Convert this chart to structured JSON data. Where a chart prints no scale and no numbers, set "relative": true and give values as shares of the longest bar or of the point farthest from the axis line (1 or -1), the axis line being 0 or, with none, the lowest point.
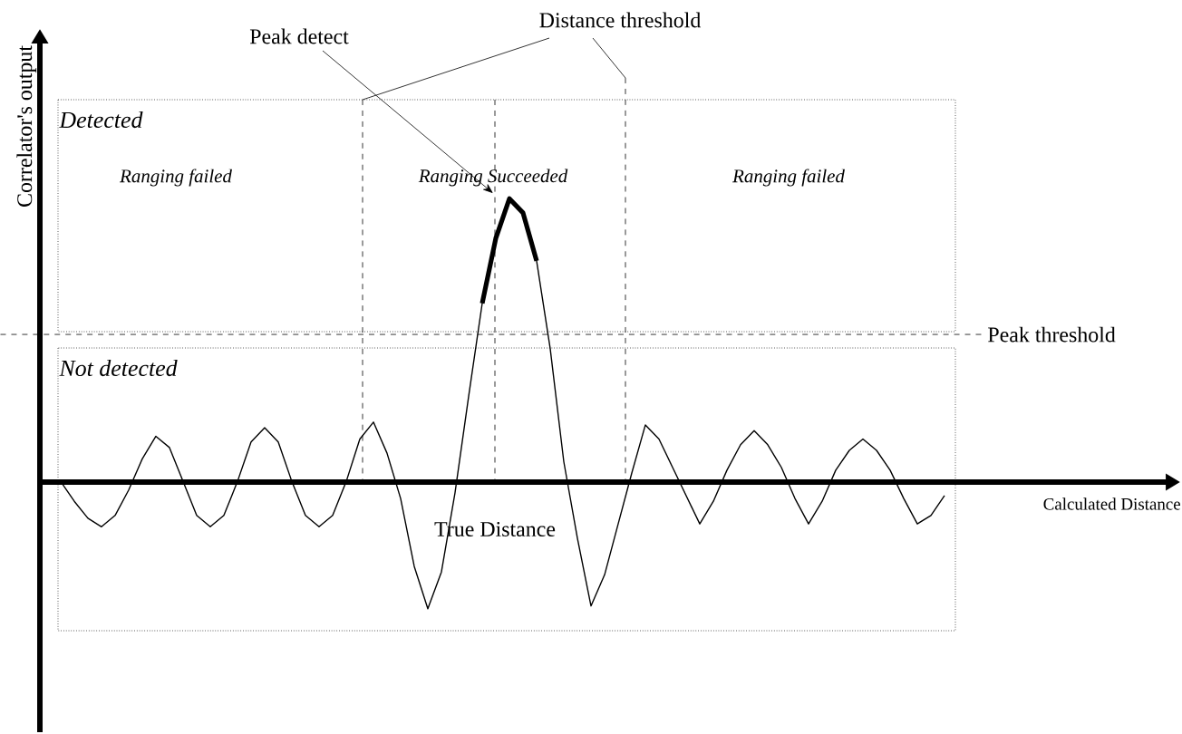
{
  "chart_data": {
    "type": "line",
    "relative": true,
    "ylabel": "Correlator's output",
    "categories": [
      null,
      null,
      null,
      null,
      null,
      null,
      null,
      null,
      null,
      null,
      null,
      null,
      null,
      null,
      null,
      null,
      null,
      null,
      null,
      null,
      null,
      null,
      null,
      null,
      null,
      null,
      null,
      null,
      null,
      null,
      null,
      null,
      null,
      null,
      null,
      null,
      null,
      null,
      null,
      null,
      null,
      null,
      null,
      null,
      null,
      null,
      null,
      null,
      null,
      null,
      null,
      null,
      null,
      null,
      null,
      null,
      null,
      null,
      null,
      null,
      null,
      null,
      null,
      null,
      null,
      null
    ],
    "series": [
      {
        "color": "#000000",
        "values": [
          0,
          -0.07,
          -0.13,
          -0.16,
          -0.12,
          -0.03,
          0.08,
          0.16,
          0.12,
          0,
          -0.12,
          -0.16,
          -0.12,
          0,
          0.14,
          0.19,
          0.14,
          0,
          -0.12,
          -0.16,
          -0.12,
          0,
          0.15,
          0.21,
          0.1,
          -0.06,
          -0.3,
          -0.45,
          -0.32,
          -0.04,
          0.3,
          0.63,
          0.86,
          1.0,
          0.95,
          0.78,
          0.47,
          0.07,
          -0.2,
          -0.44,
          -0.33,
          -0.15,
          0.03,
          0.2,
          0.15,
          0.05,
          -0.05,
          -0.15,
          -0.07,
          0.04,
          0.13,
          0.18,
          0.13,
          0.05,
          -0.06,
          -0.15,
          -0.07,
          0.04,
          0.11,
          0.15,
          0.11,
          0.04,
          -0.06,
          -0.15,
          -0.12,
          -0.05
        ]
      },
      {
        "color": "#000000",
        "values": [
          null,
          null,
          null,
          null,
          null,
          null,
          null,
          null,
          null,
          null,
          null,
          null,
          null,
          null,
          null,
          null,
          null,
          null,
          null,
          null,
          null,
          null,
          null,
          null,
          null,
          null,
          null,
          null,
          null,
          null,
          null,
          0.63,
          0.86,
          1.0,
          0.95,
          0.78,
          null,
          null,
          null,
          null,
          null,
          null,
          null,
          null,
          null,
          null,
          null,
          null,
          null,
          null,
          null,
          null,
          null,
          null,
          null,
          null,
          null,
          null,
          null,
          null,
          null,
          null,
          null,
          null,
          null,
          null
        ]
      }
    ],
    "ref_lines": [
      {
        "axis": "y",
        "value": 0.52,
        "label": "Peak threshold",
        "line_style": "dashed"
      }
    ],
    "annotations": [
      "Peak detect",
      "Distance threshold",
      "True Distance",
      "Detected",
      "Not detected",
      "Ranging failed",
      "Ranging Succeeded",
      "Ranging failed",
      "Calculated Distance"
    ]
  }
}
